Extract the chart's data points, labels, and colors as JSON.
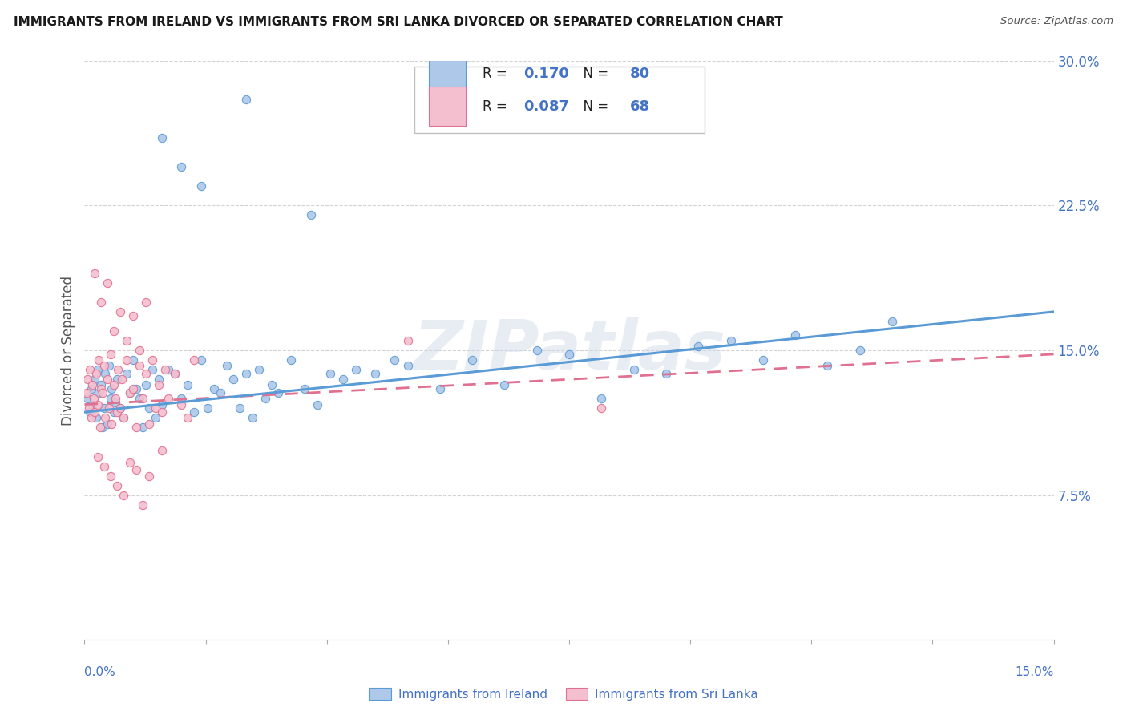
{
  "title": "IMMIGRANTS FROM IRELAND VS IMMIGRANTS FROM SRI LANKA DIVORCED OR SEPARATED CORRELATION CHART",
  "source": "Source: ZipAtlas.com",
  "ylabel": "Divorced or Separated",
  "xmin": 0.0,
  "xmax": 15.0,
  "ymin": 0.0,
  "ymax": 30.0,
  "yticks": [
    7.5,
    15.0,
    22.5,
    30.0
  ],
  "ytick_labels": [
    "7.5%",
    "15.0%",
    "22.5%",
    "30.0%"
  ],
  "ireland_color": "#adc8e8",
  "ireland_line_color": "#5b9bd5",
  "srilanka_color": "#f4bfcf",
  "srilanka_line_color": "#e07090",
  "ireland_R": 0.17,
  "ireland_N": 80,
  "srilanka_R": 0.087,
  "srilanka_N": 68,
  "text_blue_color": "#4472c4",
  "text_dark_color": "#222222",
  "watermark": "ZIPatlas",
  "background_color": "#ffffff",
  "grid_color": "#c8c8c8",
  "legend_label_ireland": "Immigrants from Ireland",
  "legend_label_srilanka": "Immigrants from Sri Lanka"
}
